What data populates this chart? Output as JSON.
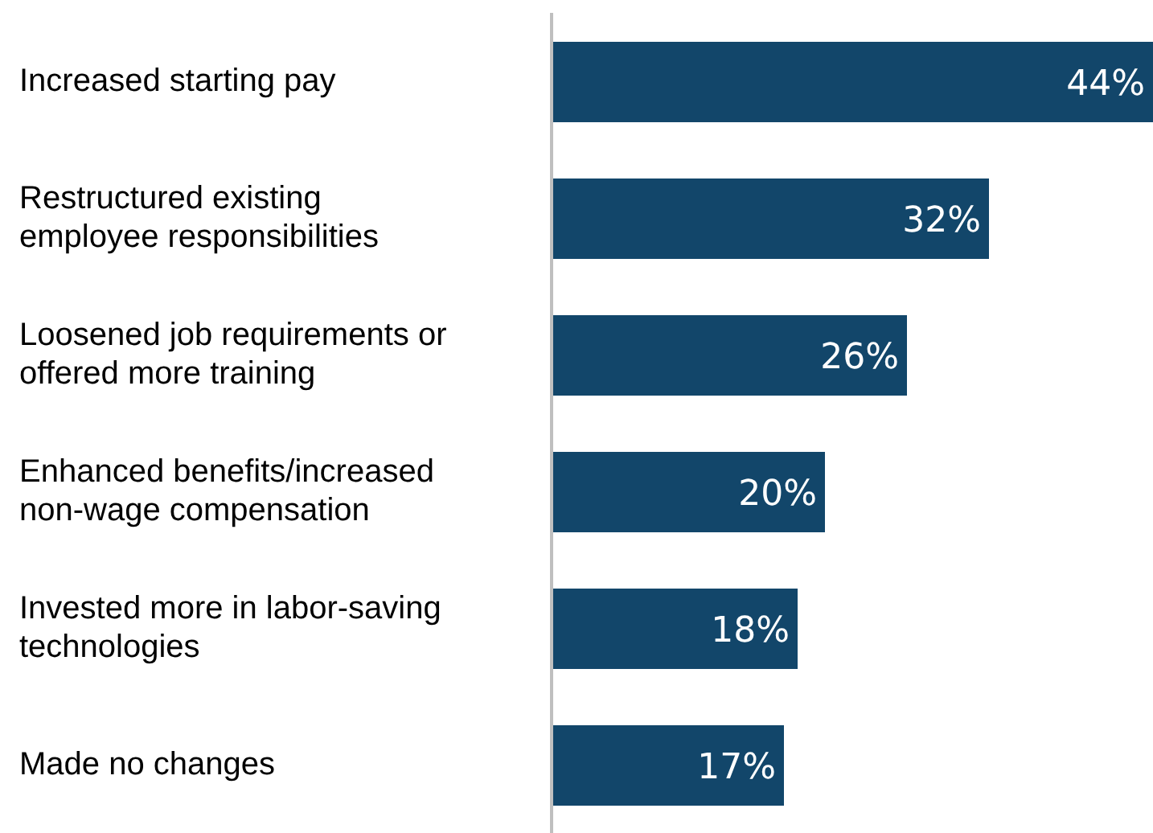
{
  "chart_data": {
    "type": "bar",
    "orientation": "horizontal",
    "categories": [
      "Increased starting pay",
      "Restructured existing employee responsibilities",
      "Loosened job requirements or offered more training",
      "Enhanced benefits/increased non-wage compensation",
      "Invested more in labor-saving technologies",
      "Made no changes"
    ],
    "values": [
      44,
      32,
      26,
      20,
      18,
      17
    ],
    "value_labels": [
      "44%",
      "32%",
      "26%",
      "20%",
      "18%",
      "17%"
    ],
    "color": "#12466a",
    "grid": false,
    "legend": false
  }
}
